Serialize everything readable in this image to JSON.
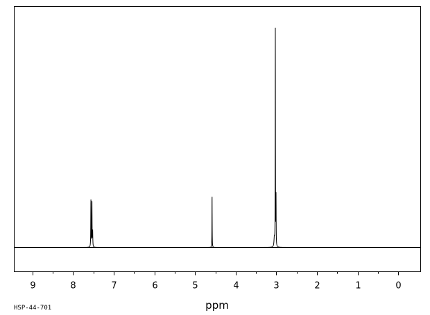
{
  "spectrum_id": "HSP-44-701",
  "chart_data": {
    "type": "line",
    "title": "",
    "xlabel": "ppm",
    "ylabel": "",
    "x_reversed": true,
    "xlim": [
      9.45,
      -0.55
    ],
    "ylim": [
      0,
      1
    ],
    "grid": false,
    "major_ticks": [
      9,
      8,
      7,
      6,
      5,
      4,
      3,
      2,
      1,
      0
    ],
    "minor_ticks": [
      8.5,
      7.5,
      6.5,
      5.5,
      4.5,
      3.5,
      2.5,
      1.5,
      0.5
    ],
    "tick_labels": [
      "9",
      "8",
      "7",
      "6",
      "5",
      "4",
      "3",
      "2",
      "1",
      "0"
    ],
    "peaks": [
      {
        "ppm": 7.563,
        "height": 0.214,
        "width": 0.004
      },
      {
        "ppm": 7.538,
        "height": 0.21,
        "width": 0.004
      },
      {
        "ppm": 7.52,
        "height": 0.07,
        "width": 0.004
      },
      {
        "ppm": 4.582,
        "height": 0.24,
        "width": 0.003
      },
      {
        "ppm": 3.025,
        "height": 1.0,
        "width": 0.003
      },
      {
        "ppm": 3.008,
        "height": 0.22,
        "width": 0.003
      },
      {
        "ppm": 3.05,
        "height": 0.04,
        "width": 0.01
      }
    ]
  }
}
